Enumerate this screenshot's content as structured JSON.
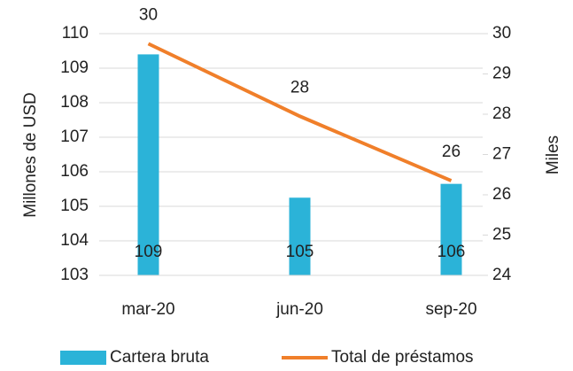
{
  "chart_data": {
    "type": "bar-line",
    "categories": [
      "mar-20",
      "jun-20",
      "sep-20"
    ],
    "series": [
      {
        "name": "Cartera bruta",
        "type": "bar",
        "color": "#2bb3d8",
        "axis": "y",
        "values": [
          109.4,
          105.25,
          105.65
        ],
        "value_labels": [
          "109",
          "105",
          "106"
        ]
      },
      {
        "name": "Total de préstamos",
        "type": "line",
        "color": "#f07f2a",
        "axis": "y2",
        "values": [
          29.75,
          27.95,
          26.35
        ],
        "value_labels": [
          "30",
          "28",
          "26"
        ]
      }
    ],
    "ylabel": "Millones de USD",
    "y2label": "Miles",
    "ylim": [
      103,
      110
    ],
    "yticks": [
      103,
      104,
      105,
      106,
      107,
      108,
      109,
      110
    ],
    "y2lim": [
      24,
      30
    ],
    "y2ticks": [
      24,
      25,
      26,
      27,
      28,
      29,
      30
    ],
    "grid": true,
    "legend": "bottom"
  }
}
